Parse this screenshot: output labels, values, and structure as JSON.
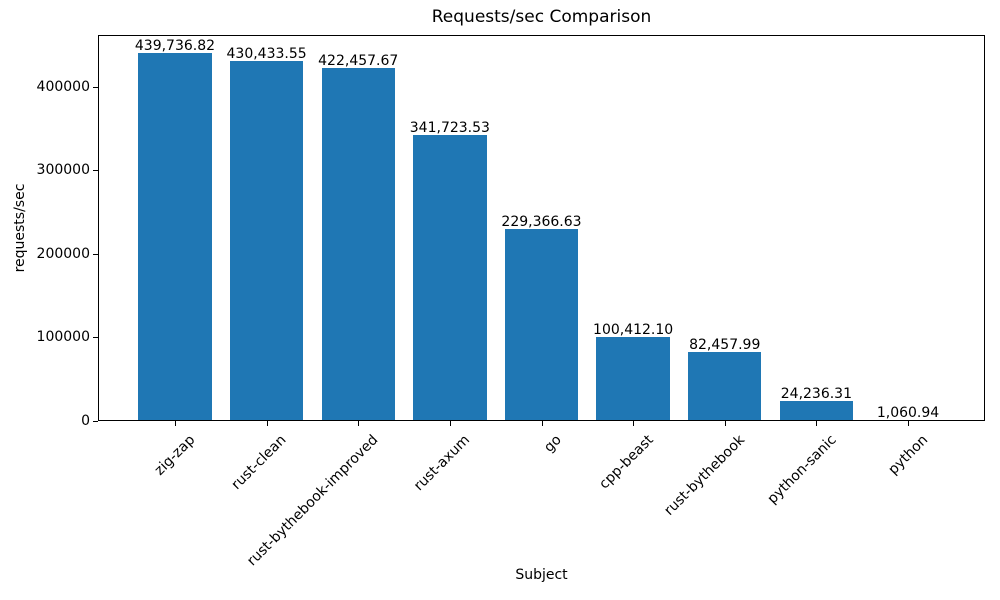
{
  "chart_data": {
    "type": "bar",
    "title": "Requests/sec Comparison",
    "xlabel": "Subject",
    "ylabel": "requests/sec",
    "categories": [
      "zig-zap",
      "rust-clean",
      "rust-bythebook-improved",
      "rust-axum",
      "go",
      "cpp-beast",
      "rust-bythebook",
      "python-sanic",
      "python"
    ],
    "values": [
      439736.82,
      430433.55,
      422457.67,
      341723.53,
      229366.63,
      100412.1,
      82457.99,
      24236.31,
      1060.94
    ],
    "value_labels": [
      "439,736.82",
      "430,433.55",
      "422,457.67",
      "341,723.53",
      "229,366.63",
      "100,412.10",
      "82,457.99",
      "24,236.31",
      "1,060.94"
    ],
    "yticks": [
      0,
      100000,
      200000,
      300000,
      400000
    ],
    "ytick_labels": [
      "0",
      "100000",
      "200000",
      "300000",
      "400000"
    ],
    "ylim": [
      0,
      461724
    ],
    "bar_color": "#1f77b4",
    "axis_color": "#000000",
    "background_color": "#ffffff",
    "grid": false,
    "legend": false,
    "x_tick_rotation": 45
  }
}
